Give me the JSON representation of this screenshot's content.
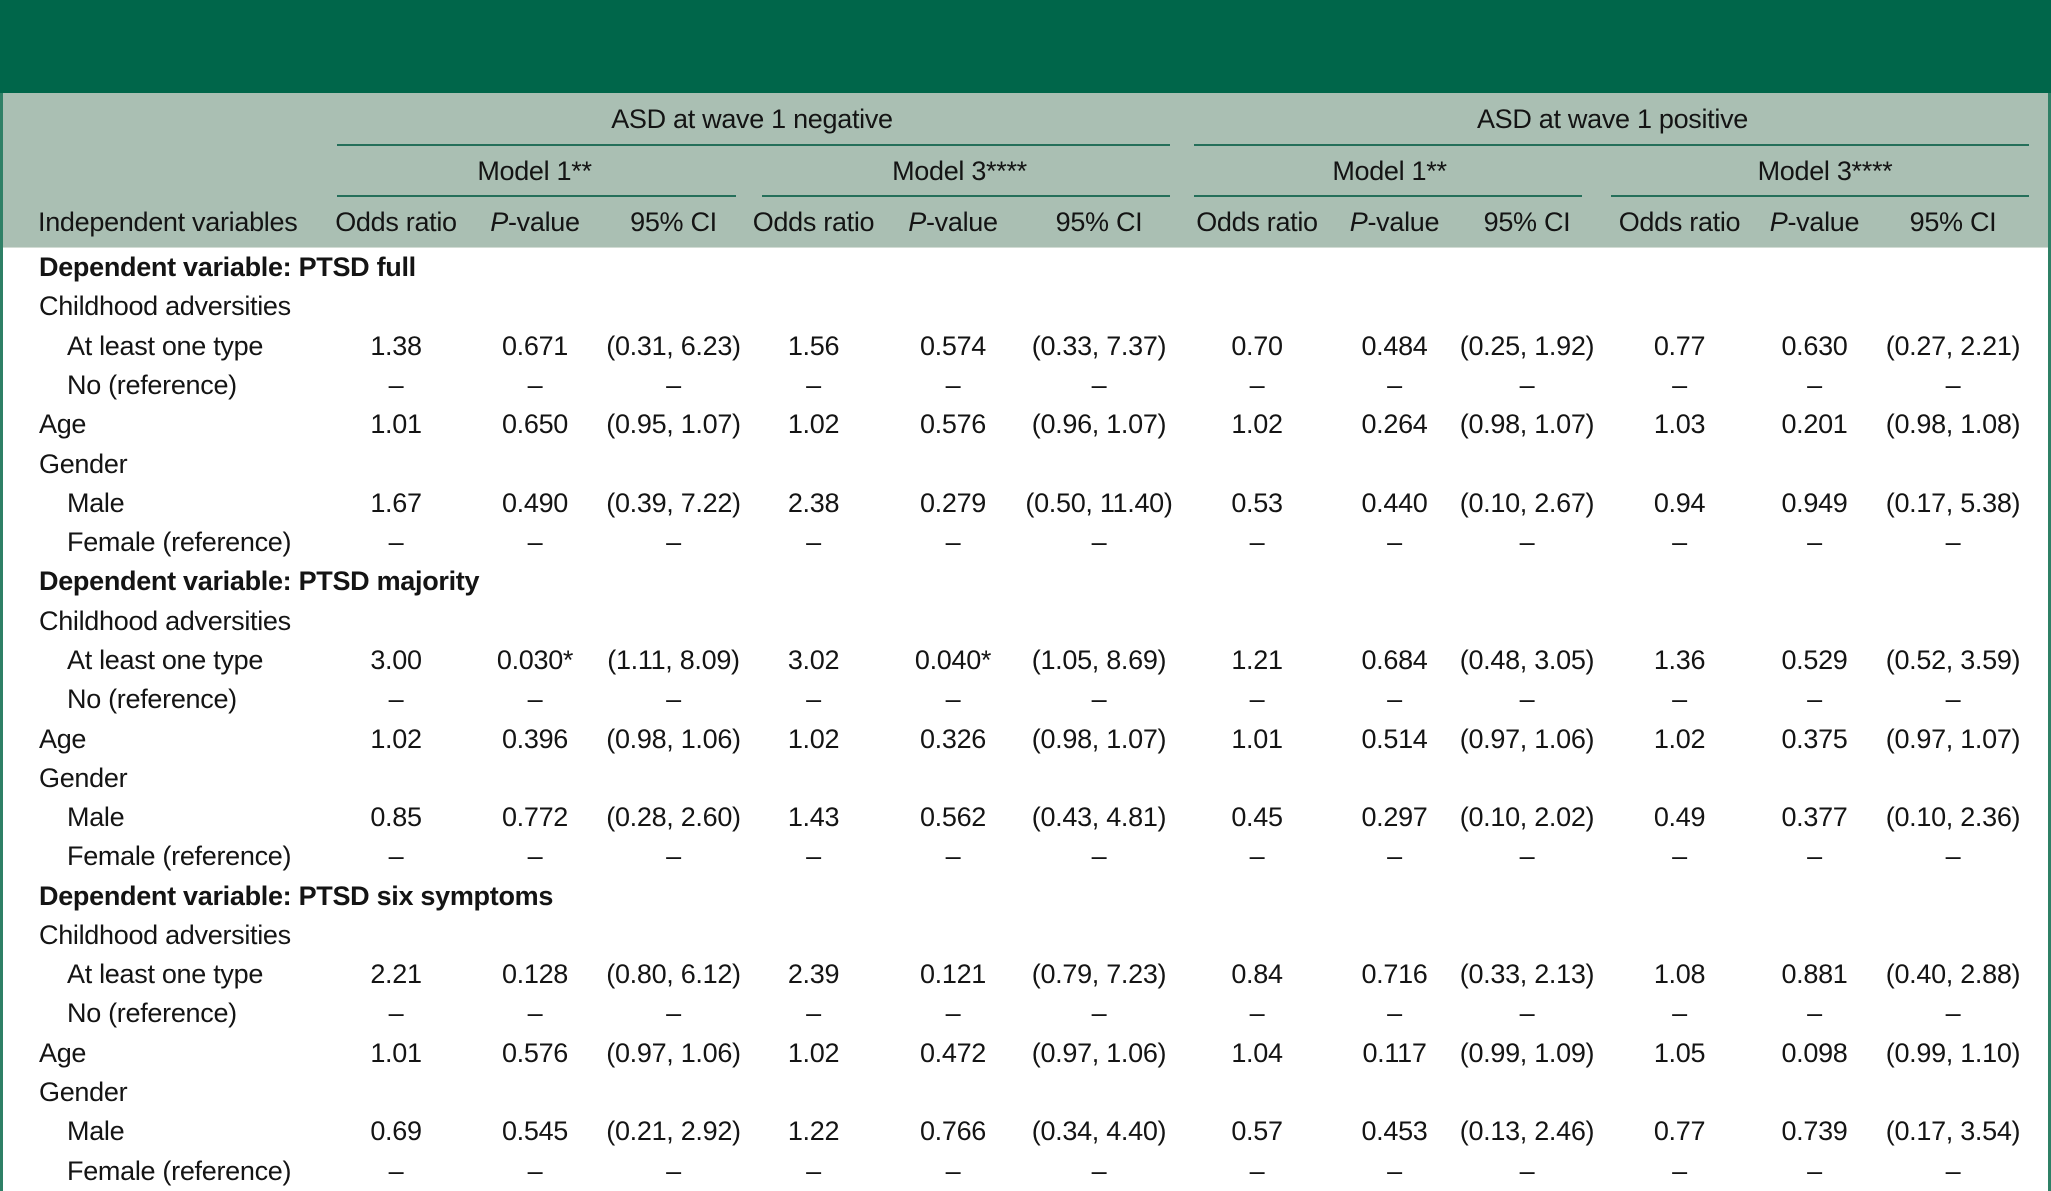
{
  "colors": {
    "banner_green": "#00664a",
    "header_sage": "#aabfb3",
    "rule_teal": "#256f5a",
    "side_border_teal": "#2f8066"
  },
  "header": {
    "row_header": "Independent variables",
    "groups": [
      {
        "label": "ASD at wave 1 negative",
        "models": [
          {
            "label": "Model 1**"
          },
          {
            "label": "Model 3****"
          }
        ]
      },
      {
        "label": "ASD at wave 1 positive",
        "models": [
          {
            "label": "Model 1**"
          },
          {
            "label": "Model 3****"
          }
        ]
      }
    ],
    "sub": [
      "Odds ratio",
      "P-value",
      "95% CI"
    ]
  },
  "table": {
    "rows": [
      {
        "type": "section",
        "label": "Dependent variable: PTSD full"
      },
      {
        "type": "group",
        "label": "Childhood adversities"
      },
      {
        "type": "item",
        "indent": 1,
        "label": "At least one type",
        "values": [
          "1.38",
          "0.671",
          "(0.31, 6.23)",
          "1.56",
          "0.574",
          "(0.33, 7.37)",
          "0.70",
          "0.484",
          "(0.25, 1.92)",
          "0.77",
          "0.630",
          "(0.27, 2.21)"
        ]
      },
      {
        "type": "item",
        "indent": 1,
        "label": "No (reference)",
        "values": [
          "–",
          "–",
          "–",
          "–",
          "–",
          "–",
          "–",
          "–",
          "–",
          "–",
          "–",
          "–"
        ]
      },
      {
        "type": "item",
        "indent": 0,
        "label": "Age",
        "values": [
          "1.01",
          "0.650",
          "(0.95, 1.07)",
          "1.02",
          "0.576",
          "(0.96, 1.07)",
          "1.02",
          "0.264",
          "(0.98, 1.07)",
          "1.03",
          "0.201",
          "(0.98, 1.08)"
        ]
      },
      {
        "type": "group",
        "label": "Gender"
      },
      {
        "type": "item",
        "indent": 1,
        "label": "Male",
        "values": [
          "1.67",
          "0.490",
          "(0.39, 7.22)",
          "2.38",
          "0.279",
          "(0.50, 11.40)",
          "0.53",
          "0.440",
          "(0.10, 2.67)",
          "0.94",
          "0.949",
          "(0.17, 5.38)"
        ]
      },
      {
        "type": "item",
        "indent": 1,
        "label": "Female (reference)",
        "values": [
          "–",
          "–",
          "–",
          "–",
          "–",
          "–",
          "–",
          "–",
          "–",
          "–",
          "–",
          "–"
        ]
      },
      {
        "type": "section",
        "label": "Dependent variable: PTSD majority"
      },
      {
        "type": "group",
        "label": "Childhood adversities"
      },
      {
        "type": "item",
        "indent": 1,
        "label": "At least one type",
        "values": [
          "3.00",
          "0.030*",
          "(1.11, 8.09)",
          "3.02",
          "0.040*",
          "(1.05, 8.69)",
          "1.21",
          "0.684",
          "(0.48, 3.05)",
          "1.36",
          "0.529",
          "(0.52, 3.59)"
        ]
      },
      {
        "type": "item",
        "indent": 1,
        "label": "No (reference)",
        "values": [
          "–",
          "–",
          "–",
          "–",
          "–",
          "–",
          "–",
          "–",
          "–",
          "–",
          "–",
          "–"
        ]
      },
      {
        "type": "item",
        "indent": 0,
        "label": "Age",
        "values": [
          "1.02",
          "0.396",
          "(0.98, 1.06)",
          "1.02",
          "0.326",
          "(0.98, 1.07)",
          "1.01",
          "0.514",
          "(0.97, 1.06)",
          "1.02",
          "0.375",
          "(0.97, 1.07)"
        ]
      },
      {
        "type": "group",
        "label": "Gender"
      },
      {
        "type": "item",
        "indent": 1,
        "label": "Male",
        "values": [
          "0.85",
          "0.772",
          "(0.28, 2.60)",
          "1.43",
          "0.562",
          "(0.43, 4.81)",
          "0.45",
          "0.297",
          "(0.10, 2.02)",
          "0.49",
          "0.377",
          "(0.10, 2.36)"
        ]
      },
      {
        "type": "item",
        "indent": 1,
        "label": "Female (reference)",
        "values": [
          "–",
          "–",
          "–",
          "–",
          "–",
          "–",
          "–",
          "–",
          "–",
          "–",
          "–",
          "–"
        ]
      },
      {
        "type": "section",
        "label": "Dependent variable: PTSD six symptoms"
      },
      {
        "type": "group",
        "label": "Childhood adversities"
      },
      {
        "type": "item",
        "indent": 1,
        "label": "At least one type",
        "values": [
          "2.21",
          "0.128",
          "(0.80, 6.12)",
          "2.39",
          "0.121",
          "(0.79, 7.23)",
          "0.84",
          "0.716",
          "(0.33, 2.13)",
          "1.08",
          "0.881",
          "(0.40, 2.88)"
        ]
      },
      {
        "type": "item",
        "indent": 1,
        "label": "No (reference)",
        "values": [
          "–",
          "–",
          "–",
          "–",
          "–",
          "–",
          "–",
          "–",
          "–",
          "–",
          "–",
          "–"
        ]
      },
      {
        "type": "item",
        "indent": 0,
        "label": "Age",
        "values": [
          "1.01",
          "0.576",
          "(0.97, 1.06)",
          "1.02",
          "0.472",
          "(0.97, 1.06)",
          "1.04",
          "0.117",
          "(0.99, 1.09)",
          "1.05",
          "0.098",
          "(0.99, 1.10)"
        ]
      },
      {
        "type": "group",
        "label": "Gender"
      },
      {
        "type": "item",
        "indent": 1,
        "label": "Male",
        "values": [
          "0.69",
          "0.545",
          "(0.21, 2.92)",
          "1.22",
          "0.766",
          "(0.34, 4.40)",
          "0.57",
          "0.453",
          "(0.13, 2.46)",
          "0.77",
          "0.739",
          "(0.17, 3.54)"
        ]
      },
      {
        "type": "item",
        "indent": 1,
        "label": "Female (reference)",
        "values": [
          "–",
          "–",
          "–",
          "–",
          "–",
          "–",
          "–",
          "–",
          "–",
          "–",
          "–",
          "–"
        ]
      }
    ]
  }
}
